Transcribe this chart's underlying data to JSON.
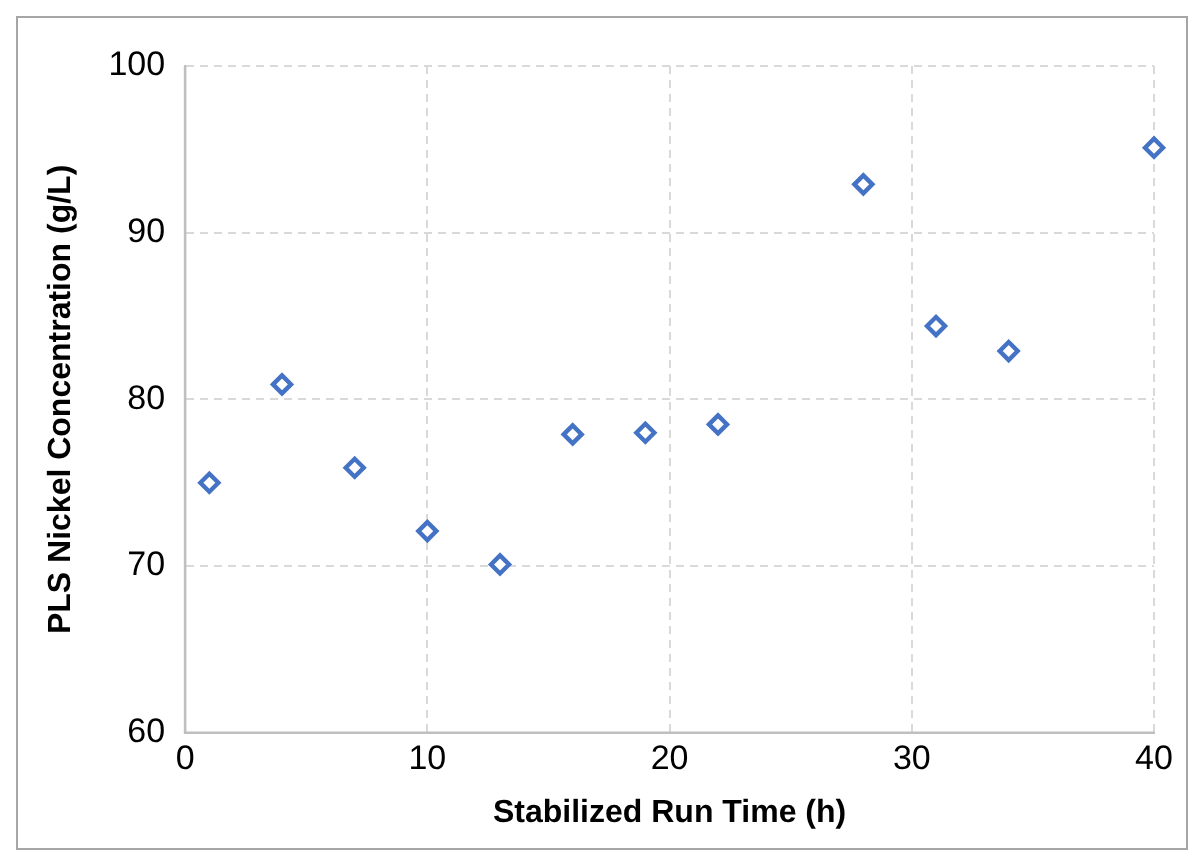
{
  "chart_data": {
    "type": "scatter",
    "xlabel": "Stabilized Run Time (h)",
    "ylabel": "PLS Nickel Concentration (g/L)",
    "x": [
      1,
      4,
      7,
      10,
      13,
      16,
      19,
      22,
      28,
      31,
      34,
      40
    ],
    "series": [
      {
        "color": "#4472c4",
        "values": [
          75,
          80.9,
          75.9,
          72.1,
          70.1,
          77.9,
          78,
          78.5,
          92.9,
          84.4,
          82.9,
          95.1
        ]
      }
    ],
    "xlim": [
      0,
      40
    ],
    "xticks": [
      0,
      10,
      20,
      30,
      40
    ],
    "ylim": [
      60,
      100
    ],
    "yticks": [
      60,
      70,
      80,
      90,
      100
    ],
    "grid": true,
    "marker": "diamond",
    "legend": false
  }
}
